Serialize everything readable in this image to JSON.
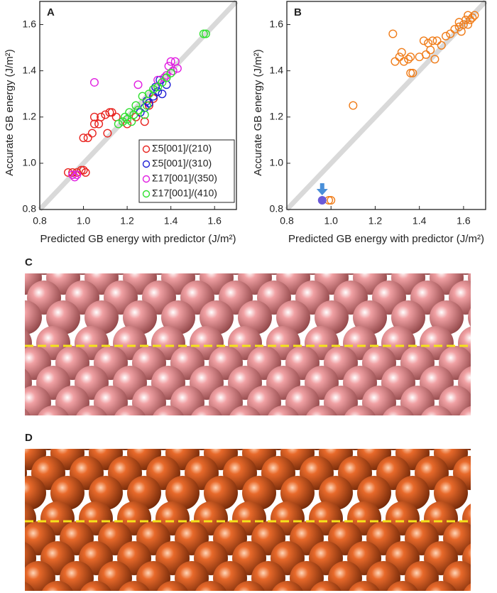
{
  "chart_data": [
    {
      "type": "scatter",
      "panel_label": "A",
      "xlabel": "Predicted GB energy with predictor (J/m²)",
      "ylabel": "Accurate GB energy (J/m²)",
      "xlim": [
        0.8,
        1.7
      ],
      "ylim": [
        0.8,
        1.7
      ],
      "xticks": [
        0.8,
        {
          "value": 1,
          "label": "1.0"
        },
        1.2,
        1.4,
        1.6
      ],
      "yticks": [
        0.8,
        {
          "value": 1,
          "label": "1.0"
        },
        1.2,
        1.4,
        1.6
      ],
      "series": [
        {
          "name": "Σ5[001]/(210)",
          "color": "#e8231f",
          "x": [
            0.93,
            0.95,
            0.97,
            0.99,
            1.0,
            1.01,
            1.0,
            1.02,
            1.04,
            1.05,
            1.07,
            1.05,
            1.08,
            1.1,
            1.12,
            1.13,
            1.15,
            1.11,
            1.2,
            1.24,
            1.28,
            1.3,
            1.32
          ],
          "values": [
            0.96,
            0.96,
            0.96,
            0.97,
            0.97,
            0.96,
            1.11,
            1.11,
            1.13,
            1.17,
            1.17,
            1.2,
            1.2,
            1.21,
            1.22,
            1.22,
            1.2,
            1.13,
            1.17,
            1.2,
            1.18,
            1.25,
            1.28
          ]
        },
        {
          "name": "Σ5[001]/(310)",
          "color": "#1f1fd6",
          "x": [
            1.26,
            1.28,
            1.3,
            1.32,
            1.34,
            1.36,
            1.38,
            1.35,
            1.33,
            1.29
          ],
          "values": [
            1.22,
            1.24,
            1.26,
            1.29,
            1.31,
            1.3,
            1.34,
            1.36,
            1.33,
            1.27
          ]
        },
        {
          "name": "Σ17[001]/(350)",
          "color": "#e11ee1",
          "x": [
            0.95,
            0.97,
            0.96,
            1.05,
            1.25,
            1.34,
            1.37,
            1.4,
            1.42,
            1.41,
            1.43,
            1.38,
            1.39
          ],
          "values": [
            0.95,
            0.95,
            0.94,
            1.35,
            1.34,
            1.36,
            1.37,
            1.44,
            1.44,
            1.4,
            1.41,
            1.38,
            1.42
          ]
        },
        {
          "name": "Σ17[001]/(410)",
          "color": "#2fe02f",
          "x": [
            1.16,
            1.18,
            1.19,
            1.2,
            1.21,
            1.22,
            1.23,
            1.24,
            1.25,
            1.27,
            1.28,
            1.29,
            1.3,
            1.32,
            1.34,
            1.36,
            1.38,
            1.4,
            1.55,
            1.56
          ],
          "values": [
            1.17,
            1.18,
            1.2,
            1.19,
            1.22,
            1.18,
            1.21,
            1.25,
            1.23,
            1.29,
            1.21,
            1.25,
            1.3,
            1.32,
            1.33,
            1.35,
            1.37,
            1.39,
            1.56,
            1.56
          ]
        }
      ]
    },
    {
      "type": "scatter",
      "panel_label": "B",
      "xlabel": "Predicted GB energy with predictor (J/m²)",
      "ylabel": "Accurate GB energy (J/m²)",
      "xlim": [
        0.8,
        1.7
      ],
      "ylim": [
        0.8,
        1.7
      ],
      "xticks": [
        0.8,
        {
          "value": 1,
          "label": "1.0"
        },
        1.2,
        1.4,
        1.6
      ],
      "yticks": [
        0.8,
        {
          "value": 1,
          "label": "1.0"
        },
        1.2,
        1.4,
        1.6
      ],
      "series": [
        {
          "color": "#f07d1a",
          "x": [
            1.0,
            0.99,
            1.1,
            1.28,
            1.29,
            1.31,
            1.32,
            1.33,
            1.35,
            1.36,
            1.37,
            1.36,
            1.4,
            1.42,
            1.43,
            1.44,
            1.45,
            1.46,
            1.47,
            1.48,
            1.5,
            1.52,
            1.54,
            1.56,
            1.58,
            1.59,
            1.6,
            1.61,
            1.62,
            1.63,
            1.64,
            1.65,
            1.58,
            1.62
          ],
          "values": [
            0.84,
            0.84,
            1.25,
            1.56,
            1.44,
            1.46,
            1.48,
            1.44,
            1.45,
            1.39,
            1.39,
            1.46,
            1.46,
            1.53,
            1.47,
            1.52,
            1.49,
            1.53,
            1.45,
            1.53,
            1.51,
            1.55,
            1.56,
            1.58,
            1.59,
            1.57,
            1.6,
            1.62,
            1.6,
            1.62,
            1.63,
            1.64,
            1.61,
            1.64
          ]
        },
        {
          "color": "#6a5ad8",
          "filled": true,
          "x": [
            0.96
          ],
          "values": [
            0.84
          ]
        }
      ]
    }
  ],
  "panels": [
    {
      "label": "C",
      "color": "#e07f82"
    },
    {
      "label": "D",
      "color": "#d4561a"
    }
  ]
}
